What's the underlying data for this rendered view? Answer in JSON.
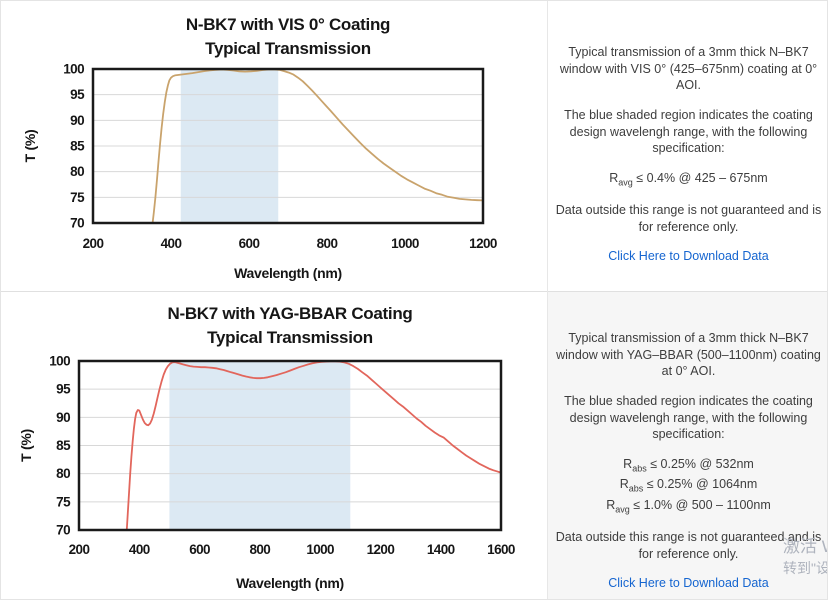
{
  "page": {
    "background": "#ffffff",
    "border_color": "#e4e4e4",
    "frame_color": "#1a1a1a",
    "gridline_color": "#d8d8d8"
  },
  "sections": [
    {
      "name": "vis-coating",
      "panel": {
        "background": "#ffffff",
        "paragraph1": "Typical transmission of a 3mm thick N–BK7 window with VIS 0° (425–675nm) coating at 0° AOI.",
        "paragraph2": "The blue shaded region indicates the coating design wavelengh range, with the following specification:",
        "specs": [
          {
            "base": "R",
            "sub": "avg",
            "rest": " ≤ 0.4% @ 425 – 675nm"
          }
        ],
        "paragraph3": "Data outside this range is not guaranteed and is for reference only.",
        "link_label": "Click Here to Download Data",
        "link_color": "#1565d0"
      }
    },
    {
      "name": "yag-bbar-coating",
      "panel": {
        "background": "#f6f6f6",
        "paragraph1": "Typical transmission of a 3mm thick N–BK7 window with YAG–BBAR (500–1100nm) coating at 0° AOI.",
        "paragraph2": "The blue shaded region indicates the coating design wavelengh range, with the following specification:",
        "specs": [
          {
            "base": "R",
            "sub": "abs",
            "rest": " ≤ 0.25% @ 532nm"
          },
          {
            "base": "R",
            "sub": "abs",
            "rest": " ≤ 0.25% @ 1064nm"
          },
          {
            "base": "R",
            "sub": "avg",
            "rest": " ≤ 1.0% @ 500 – 1100nm"
          }
        ],
        "paragraph3": "Data outside this range is not guaranteed and is for reference only.",
        "link_label": "Click Here to Download Data",
        "link_color": "#1565d0"
      }
    }
  ],
  "watermark": {
    "line1": "激活 W",
    "line2": "转到\"设",
    "color": "#aeb3bd"
  },
  "chart_data": [
    {
      "type": "line",
      "title_line1": "N-BK7 with VIS 0° Coating",
      "title_line2": "Typical Transmission",
      "xlabel": "Wavelength (nm)",
      "ylabel": "T (%)",
      "xlim": [
        200,
        1200
      ],
      "ylim": [
        70,
        100
      ],
      "xticks": [
        200,
        400,
        600,
        800,
        1000,
        1200
      ],
      "yticks": [
        70,
        75,
        80,
        85,
        90,
        95,
        100
      ],
      "grid": true,
      "legend": "none",
      "line_color": "#c9a36c",
      "shaded_region": {
        "x1": 425,
        "x2": 675,
        "color": "#dce9f3",
        "meaning": "coating design wavelength range 425-675nm"
      },
      "series": [
        {
          "name": "Transmission",
          "points": [
            [
              352,
              69.5
            ],
            [
              356,
              72
            ],
            [
              360,
              75
            ],
            [
              364,
              78.5
            ],
            [
              368,
              82
            ],
            [
              372,
              85.5
            ],
            [
              376,
              88.5
            ],
            [
              380,
              91.3
            ],
            [
              384,
              93.6
            ],
            [
              388,
              95.4
            ],
            [
              392,
              96.8
            ],
            [
              396,
              97.8
            ],
            [
              400,
              98.3
            ],
            [
              405,
              98.6
            ],
            [
              410,
              98.75
            ],
            [
              420,
              98.85
            ],
            [
              430,
              98.95
            ],
            [
              440,
              99.05
            ],
            [
              455,
              99.2
            ],
            [
              470,
              99.4
            ],
            [
              485,
              99.6
            ],
            [
              500,
              99.75
            ],
            [
              515,
              99.85
            ],
            [
              530,
              99.9
            ],
            [
              545,
              99.85
            ],
            [
              560,
              99.7
            ],
            [
              575,
              99.55
            ],
            [
              590,
              99.5
            ],
            [
              605,
              99.55
            ],
            [
              620,
              99.65
            ],
            [
              635,
              99.8
            ],
            [
              650,
              99.9
            ],
            [
              665,
              99.9
            ],
            [
              678,
              99.85
            ],
            [
              690,
              99.6
            ],
            [
              702,
              99.3
            ],
            [
              714,
              98.9
            ],
            [
              726,
              98.3
            ],
            [
              738,
              97.6
            ],
            [
              750,
              96.7
            ],
            [
              762,
              95.8
            ],
            [
              774,
              94.8
            ],
            [
              786,
              93.8
            ],
            [
              798,
              92.8
            ],
            [
              810,
              91.8
            ],
            [
              825,
              90.5
            ],
            [
              840,
              89.2
            ],
            [
              855,
              88.0
            ],
            [
              870,
              86.8
            ],
            [
              885,
              85.6
            ],
            [
              900,
              84.5
            ],
            [
              915,
              83.5
            ],
            [
              930,
              82.5
            ],
            [
              945,
              81.6
            ],
            [
              960,
              80.8
            ],
            [
              975,
              80.0
            ],
            [
              990,
              79.2
            ],
            [
              1005,
              78.5
            ],
            [
              1020,
              77.9
            ],
            [
              1035,
              77.3
            ],
            [
              1050,
              76.7
            ],
            [
              1065,
              76.3
            ],
            [
              1080,
              75.8
            ],
            [
              1095,
              75.5
            ],
            [
              1110,
              75.1
            ],
            [
              1125,
              74.9
            ],
            [
              1140,
              74.7
            ],
            [
              1155,
              74.6
            ],
            [
              1170,
              74.5
            ],
            [
              1185,
              74.45
            ],
            [
              1200,
              74.4
            ]
          ]
        }
      ]
    },
    {
      "type": "line",
      "title_line1": "N-BK7 with YAG-BBAR Coating",
      "title_line2": "Typical Transmission",
      "xlabel": "Wavelength (nm)",
      "ylabel": "T (%)",
      "xlim": [
        200,
        1600
      ],
      "ylim": [
        70,
        100
      ],
      "xticks": [
        200,
        400,
        600,
        800,
        1000,
        1200,
        1400,
        1600
      ],
      "yticks": [
        70,
        75,
        80,
        85,
        90,
        95,
        100
      ],
      "grid": true,
      "legend": "none",
      "line_color": "#e2665c",
      "shaded_region": {
        "x1": 500,
        "x2": 1100,
        "color": "#dce9f3",
        "meaning": "coating design wavelength range 500-1100nm"
      },
      "series": [
        {
          "name": "Transmission",
          "points": [
            [
              358,
              69.5
            ],
            [
              362,
              73
            ],
            [
              366,
              76.5
            ],
            [
              370,
              80
            ],
            [
              374,
              83
            ],
            [
              378,
              85.8
            ],
            [
              382,
              88
            ],
            [
              386,
              89.7
            ],
            [
              390,
              90.8
            ],
            [
              395,
              91.3
            ],
            [
              400,
              91.2
            ],
            [
              406,
              90.4
            ],
            [
              412,
              89.6
            ],
            [
              418,
              89.0
            ],
            [
              424,
              88.7
            ],
            [
              430,
              88.6
            ],
            [
              436,
              88.9
            ],
            [
              442,
              89.6
            ],
            [
              448,
              90.7
            ],
            [
              454,
              92.0
            ],
            [
              460,
              93.4
            ],
            [
              467,
              95.0
            ],
            [
              474,
              96.4
            ],
            [
              481,
              97.6
            ],
            [
              488,
              98.5
            ],
            [
              495,
              99.1
            ],
            [
              502,
              99.5
            ],
            [
              510,
              99.75
            ],
            [
              518,
              99.8
            ],
            [
              526,
              99.7
            ],
            [
              535,
              99.55
            ],
            [
              545,
              99.4
            ],
            [
              556,
              99.25
            ],
            [
              568,
              99.1
            ],
            [
              580,
              99.0
            ],
            [
              592,
              98.95
            ],
            [
              605,
              98.9
            ],
            [
              618,
              98.9
            ],
            [
              630,
              98.85
            ],
            [
              642,
              98.8
            ],
            [
              655,
              98.7
            ],
            [
              668,
              98.55
            ],
            [
              680,
              98.4
            ],
            [
              692,
              98.2
            ],
            [
              705,
              98.0
            ],
            [
              718,
              97.8
            ],
            [
              730,
              97.6
            ],
            [
              742,
              97.4
            ],
            [
              754,
              97.25
            ],
            [
              766,
              97.1
            ],
            [
              778,
              97.0
            ],
            [
              790,
              96.95
            ],
            [
              802,
              96.95
            ],
            [
              814,
              97.0
            ],
            [
              826,
              97.1
            ],
            [
              840,
              97.3
            ],
            [
              855,
              97.5
            ],
            [
              870,
              97.75
            ],
            [
              885,
              98.0
            ],
            [
              900,
              98.3
            ],
            [
              915,
              98.6
            ],
            [
              930,
              98.9
            ],
            [
              945,
              99.15
            ],
            [
              960,
              99.4
            ],
            [
              975,
              99.6
            ],
            [
              990,
              99.75
            ],
            [
              1005,
              99.85
            ],
            [
              1020,
              99.9
            ],
            [
              1035,
              99.95
            ],
            [
              1050,
              99.95
            ],
            [
              1065,
              99.9
            ],
            [
              1080,
              99.75
            ],
            [
              1095,
              99.5
            ],
            [
              1110,
              99.1
            ],
            [
              1125,
              98.6
            ],
            [
              1140,
              98.0
            ],
            [
              1155,
              97.4
            ],
            [
              1170,
              96.7
            ],
            [
              1185,
              96.0
            ],
            [
              1200,
              95.3
            ],
            [
              1215,
              94.6
            ],
            [
              1230,
              93.9
            ],
            [
              1245,
              93.2
            ],
            [
              1260,
              92.5
            ],
            [
              1275,
              91.9
            ],
            [
              1290,
              91.2
            ],
            [
              1305,
              90.5
            ],
            [
              1320,
              89.8
            ],
            [
              1335,
              89.2
            ],
            [
              1350,
              88.5
            ],
            [
              1365,
              87.9
            ],
            [
              1380,
              87.3
            ],
            [
              1395,
              86.8
            ],
            [
              1410,
              86.4
            ],
            [
              1425,
              85.7
            ],
            [
              1440,
              85.0
            ],
            [
              1455,
              84.4
            ],
            [
              1470,
              83.8
            ],
            [
              1485,
              83.2
            ],
            [
              1500,
              82.7
            ],
            [
              1515,
              82.2
            ],
            [
              1530,
              81.7
            ],
            [
              1545,
              81.3
            ],
            [
              1560,
              80.9
            ],
            [
              1575,
              80.6
            ],
            [
              1590,
              80.35
            ],
            [
              1600,
              80.2
            ]
          ]
        }
      ]
    }
  ]
}
